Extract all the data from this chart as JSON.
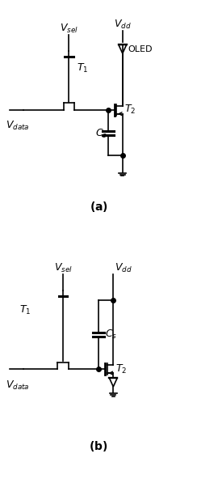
{
  "figsize": [
    2.44,
    5.92
  ],
  "dpi": 100,
  "bg_color": "#ffffff",
  "line_color": "#000000",
  "lw": 1.2,
  "fs": 8
}
